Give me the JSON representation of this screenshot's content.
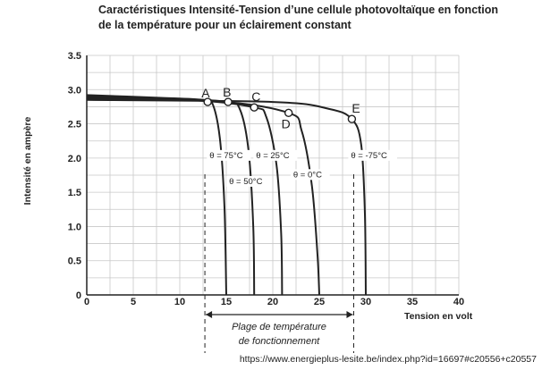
{
  "title": {
    "line1": "Caractéristiques Intensité-Tension d’une cellule photovoltaïque en fonction",
    "line2": "de la température pour un éclairement constant"
  },
  "source": "https://www.energieplus-lesite.be/index.php?id=16697#c20556+c20557",
  "range_label": {
    "line1": "Plage de température",
    "line2": "de fonctionnement"
  },
  "chart_data": {
    "type": "line",
    "xlabel": "Tension en volt",
    "ylabel": "Intensité en ampère",
    "xlim": [
      0,
      40
    ],
    "ylim": [
      0,
      3.5
    ],
    "x_ticks": [
      "0",
      "5",
      "10",
      "15",
      "20",
      "25",
      "30",
      "35",
      "40"
    ],
    "y_ticks": [
      "0",
      "0.5",
      "1.0",
      "1.5",
      "2.0",
      "2.5",
      "3.0",
      "3.5"
    ],
    "grid": true,
    "series": [
      {
        "name": "θ = 75°C",
        "points": [
          [
            0,
            2.92
          ],
          [
            8,
            2.88
          ],
          [
            12.5,
            2.85
          ],
          [
            13.5,
            2.8
          ],
          [
            14.3,
            2.3
          ],
          [
            14.8,
            1.3
          ],
          [
            15,
            0
          ]
        ]
      },
      {
        "name": "θ = 50°C",
        "points": [
          [
            0,
            2.9
          ],
          [
            10,
            2.86
          ],
          [
            15.2,
            2.82
          ],
          [
            16.5,
            2.7
          ],
          [
            17.4,
            2.1
          ],
          [
            17.9,
            1.0
          ],
          [
            18,
            0
          ]
        ]
      },
      {
        "name": "θ = 25°C",
        "points": [
          [
            0,
            2.88
          ],
          [
            12,
            2.84
          ],
          [
            18,
            2.74
          ],
          [
            19.3,
            2.6
          ],
          [
            20.4,
            1.9
          ],
          [
            20.9,
            0.9
          ],
          [
            21,
            0
          ]
        ]
      },
      {
        "name": "θ = 0°C",
        "points": [
          [
            0,
            2.87
          ],
          [
            14,
            2.83
          ],
          [
            21.7,
            2.66
          ],
          [
            23.1,
            2.4
          ],
          [
            24.2,
            1.6
          ],
          [
            24.8,
            0.6
          ],
          [
            25,
            0
          ]
        ]
      },
      {
        "name": "θ = -75°C",
        "points": [
          [
            0,
            2.85
          ],
          [
            20,
            2.82
          ],
          [
            26,
            2.72
          ],
          [
            28.5,
            2.57
          ],
          [
            29.5,
            2.2
          ],
          [
            29.9,
            1.2
          ],
          [
            30,
            0
          ]
        ]
      }
    ],
    "points": [
      {
        "label": "A",
        "x": 13,
        "y": 2.82
      },
      {
        "label": "B",
        "x": 15.2,
        "y": 2.82
      },
      {
        "label": "C",
        "x": 18,
        "y": 2.74
      },
      {
        "label": "D",
        "x": 21.7,
        "y": 2.66
      },
      {
        "label": "E",
        "x": 28.5,
        "y": 2.57
      }
    ],
    "temperature_labels": [
      {
        "text": "θ = 75°C",
        "x": 13.2,
        "y": 2.0
      },
      {
        "text": "θ = 50°C",
        "x": 15.3,
        "y": 1.62
      },
      {
        "text": "θ = 25°C",
        "x": 18.2,
        "y": 2.0
      },
      {
        "text": "θ = 0°C",
        "x": 22.2,
        "y": 1.72
      },
      {
        "text": "θ = -75°C",
        "x": 28.4,
        "y": 2.0
      }
    ],
    "operating_range": [
      12.7,
      28.7
    ]
  }
}
